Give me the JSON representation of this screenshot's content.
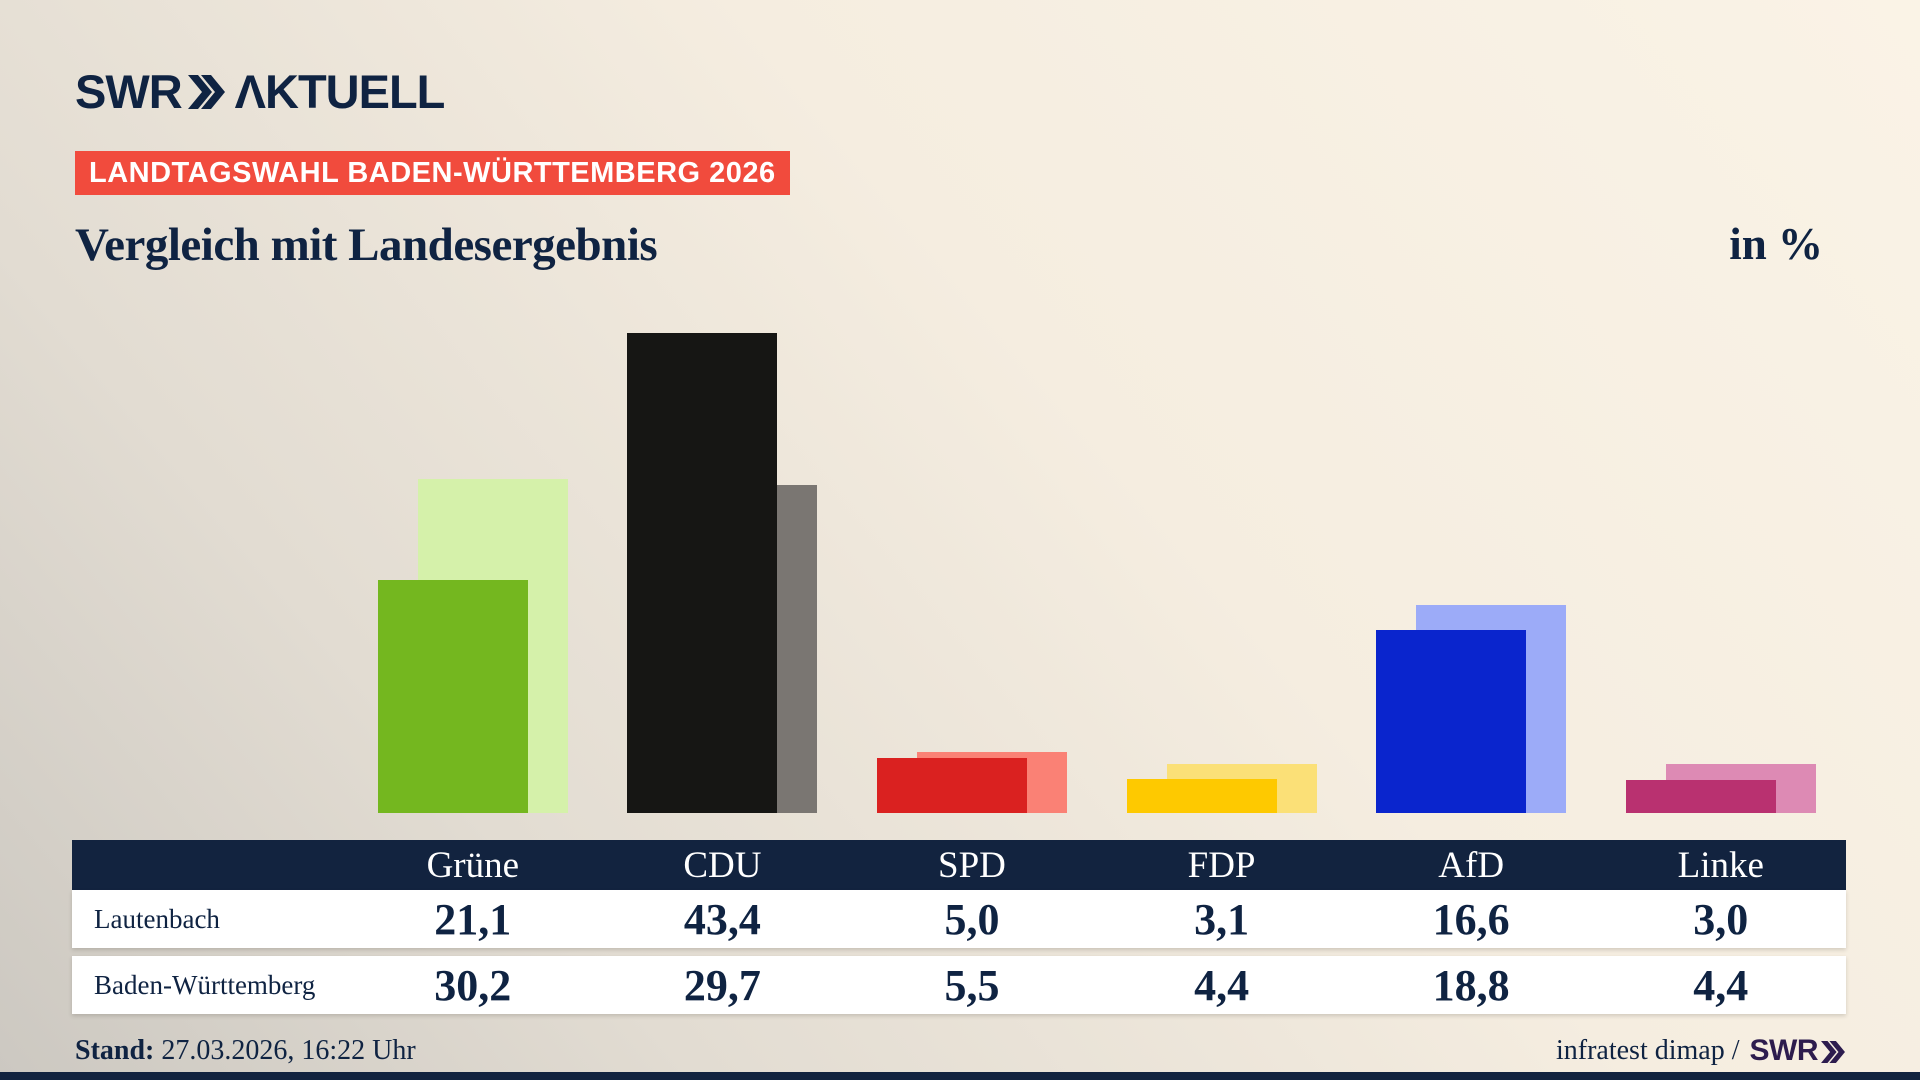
{
  "header": {
    "logo": {
      "swr": "SWR",
      "aktuell": "ΛKTUELL"
    },
    "badge": "LANDTAGSWAHL BADEN-WÜRTTEMBERG 2026",
    "title": "Vergleich mit Landesergebnis",
    "unit_label": "in %"
  },
  "chart_data": {
    "type": "bar",
    "categories": [
      "Grüne",
      "CDU",
      "SPD",
      "FDP",
      "AfD",
      "Linke"
    ],
    "series": [
      {
        "name": "Lautenbach",
        "values": [
          21.1,
          43.4,
          5.0,
          3.1,
          16.6,
          3.0
        ]
      },
      {
        "name": "Baden-Württemberg",
        "values": [
          30.2,
          29.7,
          5.5,
          4.4,
          18.8,
          4.4
        ]
      }
    ],
    "title": "Vergleich mit Landesergebnis",
    "unit": "in %",
    "ylim": [
      0,
      45
    ],
    "grid": false,
    "legend": "none",
    "bar_style": "overlapping pairs: front bar = Lautenbach (saturated color, offset left), back bar = Baden-Württemberg (light color, offset right), shared baseline, no axes"
  },
  "table": {
    "columns": [
      "Grüne",
      "CDU",
      "SPD",
      "FDP",
      "AfD",
      "Linke"
    ],
    "rows": [
      {
        "label": "Lautenbach",
        "values": [
          "21,1",
          "43,4",
          "5,0",
          "3,1",
          "16,6",
          "3,0"
        ]
      },
      {
        "label": "Baden-Württemberg",
        "values": [
          "30,2",
          "29,7",
          "5,5",
          "4,4",
          "18,8",
          "4,4"
        ]
      }
    ]
  },
  "footer": {
    "stand_label": "Stand:",
    "stand_value": " 27.03.2026, 16:22 Uhr",
    "source_text": "infratest dimap /",
    "source_logo": "SWR"
  },
  "colors": {
    "navy_text": "#0f2342",
    "table_header_bg": "#12233f",
    "badge_bg": "#f14b3d",
    "row_bg": "#ffffff",
    "footer_logo_purple": "#2d1c4e",
    "background_cream": "#faf3e6",
    "background_gray": "#ccc8c1",
    "parties": [
      {
        "id": "gruene",
        "front": "#74b71f",
        "back": "#d5f1aa"
      },
      {
        "id": "cdu",
        "front": "#161614",
        "back": "#7a7672"
      },
      {
        "id": "spd",
        "front": "#da2120",
        "back": "#fa8175"
      },
      {
        "id": "fdp",
        "front": "#fec900",
        "back": "#fbe077"
      },
      {
        "id": "afd",
        "front": "#0a25cd",
        "back": "#9cabf8"
      },
      {
        "id": "linke",
        "front": "#b93170",
        "back": "#dd8ab4"
      }
    ]
  }
}
